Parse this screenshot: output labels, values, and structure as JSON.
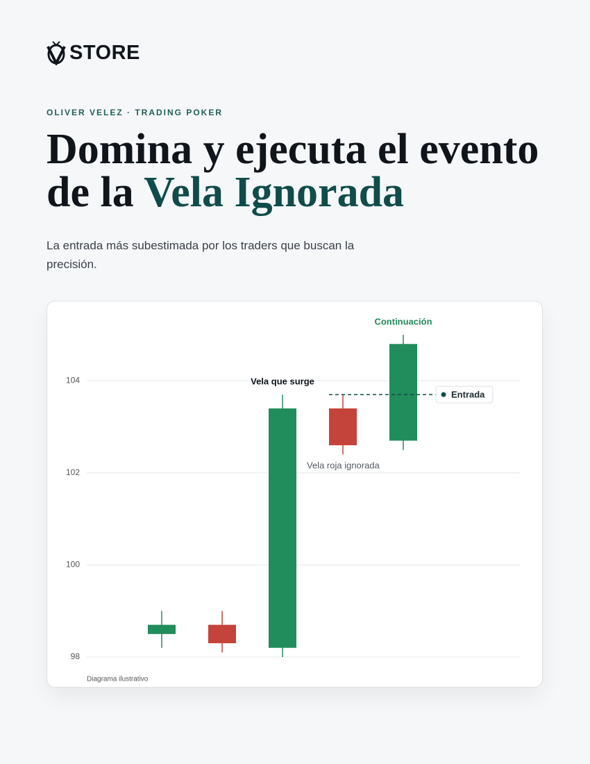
{
  "header": {
    "brand": "STORE",
    "eyebrow": "OLIVER VELEZ · TRADING POKER",
    "title_lines": [
      "Domina y ejecuta el evento",
      "de la"
    ],
    "title_accent": "Vela Ignorada",
    "subtitle": "La entrada más subestimada por los traders que buscan la precisión."
  },
  "chart_data": {
    "type": "candlestick",
    "open": [
      98.5,
      98.7,
      98.2,
      103.4,
      102.7
    ],
    "high": [
      99.0,
      99.0,
      103.7,
      103.7,
      105.0
    ],
    "low": [
      98.2,
      98.1,
      98.0,
      102.4,
      102.5
    ],
    "close": [
      98.7,
      98.3,
      103.4,
      102.6,
      104.8
    ],
    "up_color": "#218c5c",
    "down_color": "#c4433a",
    "ylim": [
      98,
      105
    ],
    "yticks": [
      98,
      100,
      102,
      104
    ],
    "grid": true,
    "entry": {
      "label": "Entrada",
      "value": 103.7
    },
    "annotations": [
      "Vela que surge",
      "Vela roja ignorada",
      "Continuación"
    ],
    "note": "Diagrama ilustrativo"
  }
}
